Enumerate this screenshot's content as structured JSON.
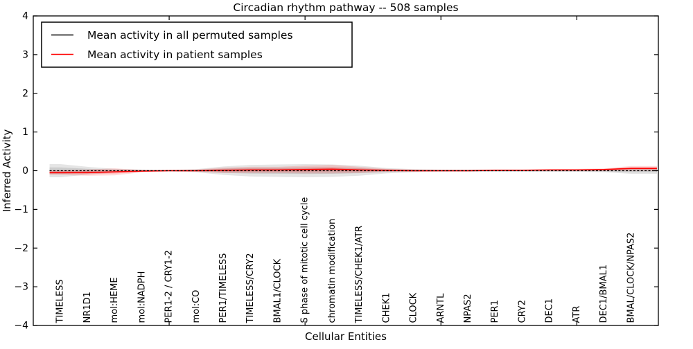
{
  "figure": {
    "title": "Circadian rhythm pathway -- 508 samples",
    "xlabel": "Cellular Entities",
    "ylabel": "Inferred Activity"
  },
  "chart_data": {
    "type": "line",
    "title": "Circadian rhythm pathway -- 508 samples",
    "xlabel": "Cellular Entities",
    "ylabel": "Inferred Activity",
    "ylim": [
      -4,
      4
    ],
    "ytick_values": [
      4,
      3,
      2,
      1,
      0,
      -1,
      -2,
      -3,
      -4
    ],
    "ytick_labels": [
      "4",
      "3",
      "2",
      "1",
      "0",
      "−1",
      "−2",
      "−3",
      "−4"
    ],
    "unlabeled_xtick_axis_values": [
      5,
      10,
      15,
      20
    ],
    "grid": false,
    "legend_position": "upper left",
    "categories": [
      "TIMELESS",
      "NR1D1",
      "mol:HEME",
      "mol:NADPH",
      "PER1-2 / CRY1-2",
      "mol:CO",
      "PER1/TIMELESS",
      "TIMELESS/CRY2",
      "BMAL1/CLOCK",
      "S phase of mitotic cell cycle",
      "chromatin modification",
      "TIMELESS/CHEK1/ATR",
      "CHEK1",
      "CLOCK",
      "ARNTL",
      "NPAS2",
      "PER1",
      "CRY2",
      "DEC1",
      "ATR",
      "DEC1/BMAL1",
      "BMAL/CLOCK/NPAS2"
    ],
    "series": [
      {
        "name": "Mean activity in all permuted samples",
        "color": "#000000",
        "line_style": "dotted",
        "values": [
          0,
          0,
          0,
          0,
          0,
          0,
          0,
          0,
          0,
          0,
          0,
          0,
          0,
          0,
          0,
          0,
          0,
          0,
          0,
          0,
          0,
          0
        ],
        "band_halfwidth": [
          0.17,
          0.1,
          0.05,
          0.03,
          0.02,
          0.04,
          0.11,
          0.15,
          0.16,
          0.17,
          0.16,
          0.13,
          0.07,
          0.04,
          0.03,
          0.03,
          0.03,
          0.03,
          0.03,
          0.03,
          0.04,
          0.08
        ]
      },
      {
        "name": "Mean activity in patient samples",
        "color": "#ff0000",
        "line_style": "solid",
        "values": [
          -0.05,
          -0.05,
          -0.03,
          -0.01,
          0.0,
          0.0,
          0.01,
          0.02,
          0.02,
          0.03,
          0.04,
          0.02,
          0.01,
          0.0,
          0.0,
          0.0,
          0.01,
          0.01,
          0.02,
          0.02,
          0.03,
          0.06
        ],
        "band_halfwidth": [
          0.06,
          0.08,
          0.09,
          0.03,
          0.02,
          0.03,
          0.07,
          0.08,
          0.08,
          0.1,
          0.11,
          0.08,
          0.04,
          0.03,
          0.02,
          0.02,
          0.02,
          0.02,
          0.02,
          0.03,
          0.03,
          0.06
        ]
      }
    ]
  },
  "colors": {
    "background": "#ffffff",
    "frame": "#000000",
    "permuted_line": "#000000",
    "patient_line": "#ff0000",
    "permuted_band": "rgba(0,0,0,0.10)",
    "patient_band": "rgba(255,0,0,0.14)"
  }
}
